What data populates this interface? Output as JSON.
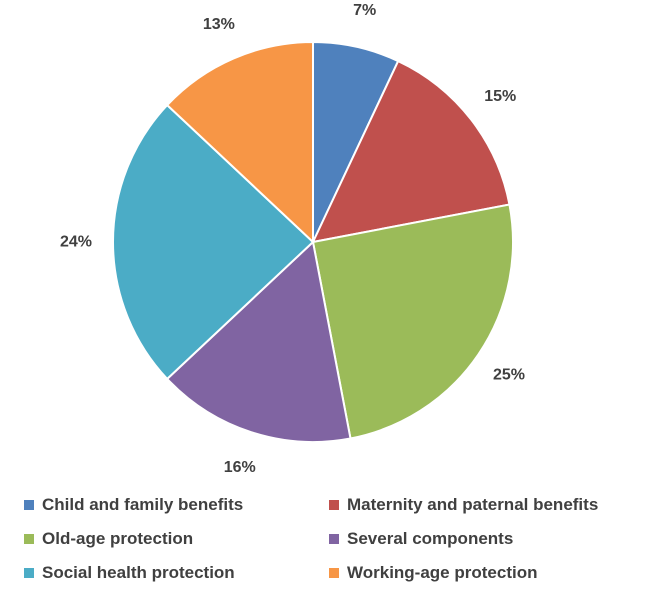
{
  "chart_data": {
    "type": "pie",
    "title": "",
    "categories": [
      "Child and family benefits",
      "Maternity and paternal benefits",
      "Old-age protection",
      "Several components",
      "Social health protection",
      "Working-age protection"
    ],
    "values": [
      7,
      15,
      25,
      16,
      24,
      13
    ],
    "labels": [
      "7%",
      "15%",
      "25%",
      "16%",
      "24%",
      "13%"
    ],
    "colors": [
      "#4f81bd",
      "#c0504d",
      "#9bbb59",
      "#8064a2",
      "#4bacc6",
      "#f79646"
    ],
    "start_angle": "12 o'clock",
    "direction": "clockwise",
    "legend_position": "bottom",
    "grid": false
  }
}
